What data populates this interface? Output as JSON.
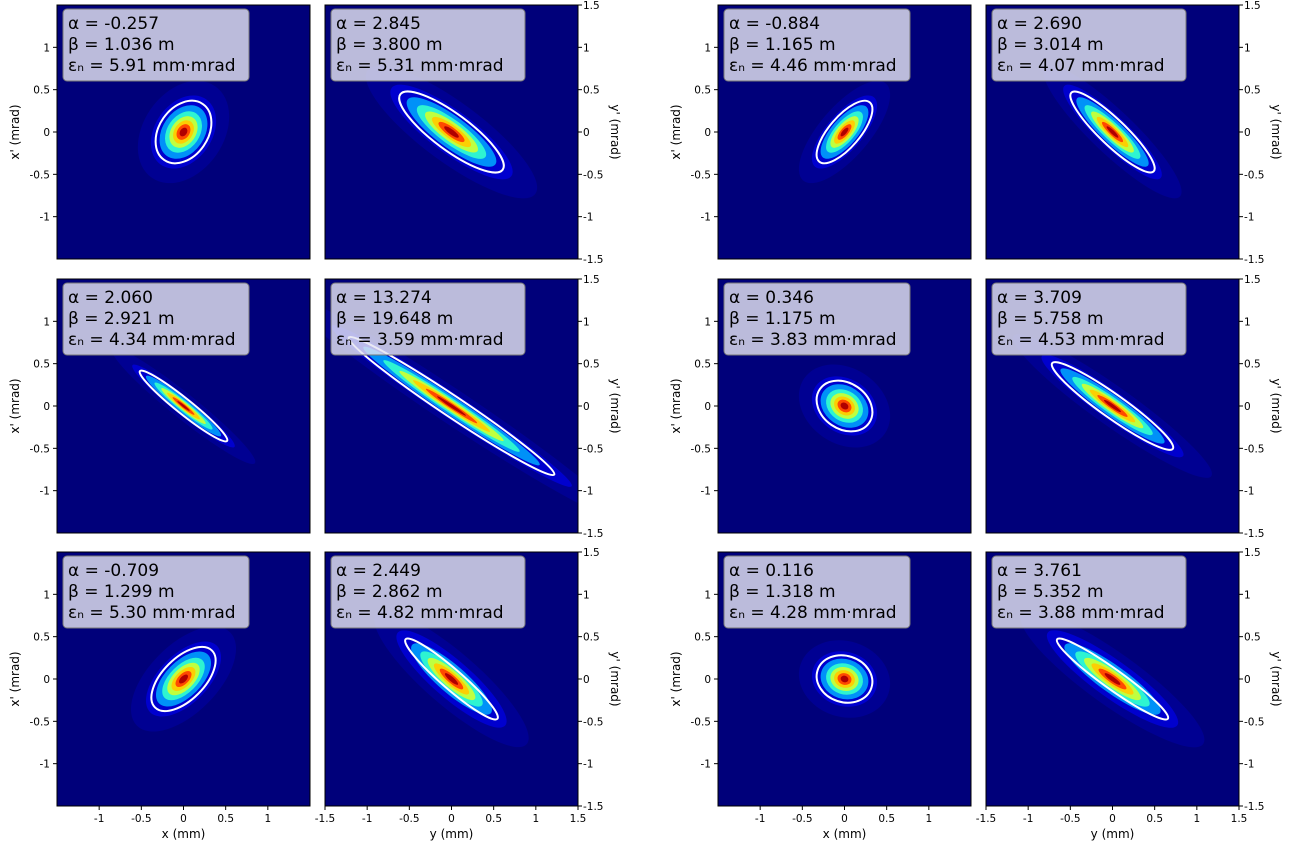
{
  "colors": {
    "background": "#00007a",
    "ellipse": "#ffffff",
    "colormap": [
      "#00007a",
      "#0000ff",
      "#00aaff",
      "#33ffcc",
      "#ccff33",
      "#ffcc00",
      "#ff4400",
      "#b00000"
    ]
  },
  "chart_data": [
    {
      "type": "heatmap",
      "plane": "x",
      "xlabel": "x (mm)",
      "ylabel": "x' (mrad)",
      "xlim": [
        -1.5,
        1.5
      ],
      "ylim": [
        -1.5,
        1.5
      ],
      "colormap": "jet",
      "grid": false,
      "annotation": {
        "alpha": "α = -0.257",
        "beta": "β = 1.036 m",
        "emittance": "εₙ = 5.91 mm·mrad"
      },
      "twiss": {
        "alpha": -0.257,
        "beta": 1.036,
        "emittance": 5.91
      }
    },
    {
      "type": "heatmap",
      "plane": "y",
      "xlabel": "y (mm)",
      "ylabel": "y' (mrad)",
      "xlim": [
        -1.5,
        1.5
      ],
      "ylim": [
        -1.5,
        1.5
      ],
      "colormap": "jet",
      "grid": false,
      "annotation": {
        "alpha": "α = 2.845",
        "beta": "β = 3.800 m",
        "emittance": "εₙ = 5.31 mm·mrad"
      },
      "twiss": {
        "alpha": 2.845,
        "beta": 3.8,
        "emittance": 5.31
      }
    },
    {
      "type": "heatmap",
      "plane": "x",
      "xlabel": "x (mm)",
      "ylabel": "x' (mrad)",
      "xlim": [
        -1.5,
        1.5
      ],
      "ylim": [
        -1.5,
        1.5
      ],
      "colormap": "jet",
      "grid": false,
      "annotation": {
        "alpha": "α = -0.884",
        "beta": "β = 1.165 m",
        "emittance": "εₙ = 4.46 mm·mrad"
      },
      "twiss": {
        "alpha": -0.884,
        "beta": 1.165,
        "emittance": 4.46
      }
    },
    {
      "type": "heatmap",
      "plane": "y",
      "xlabel": "y (mm)",
      "ylabel": "y' (mrad)",
      "xlim": [
        -1.5,
        1.5
      ],
      "ylim": [
        -1.5,
        1.5
      ],
      "colormap": "jet",
      "grid": false,
      "annotation": {
        "alpha": "α = 2.690",
        "beta": "β = 3.014 m",
        "emittance": "εₙ = 4.07 mm·mrad"
      },
      "twiss": {
        "alpha": 2.69,
        "beta": 3.014,
        "emittance": 4.07
      }
    },
    {
      "type": "heatmap",
      "plane": "x",
      "xlabel": "x (mm)",
      "ylabel": "x' (mrad)",
      "xlim": [
        -1.5,
        1.5
      ],
      "ylim": [
        -1.5,
        1.5
      ],
      "colormap": "jet",
      "grid": false,
      "annotation": {
        "alpha": "α = 2.060",
        "beta": "β = 2.921 m",
        "emittance": "εₙ = 4.34 mm·mrad"
      },
      "twiss": {
        "alpha": 2.06,
        "beta": 2.921,
        "emittance": 4.34
      }
    },
    {
      "type": "heatmap",
      "plane": "y",
      "xlabel": "y (mm)",
      "ylabel": "y' (mrad)",
      "xlim": [
        -1.5,
        1.5
      ],
      "ylim": [
        -1.5,
        1.5
      ],
      "colormap": "jet",
      "grid": false,
      "annotation": {
        "alpha": "α = 13.274",
        "beta": "β = 19.648 m",
        "emittance": "εₙ = 3.59 mm·mrad"
      },
      "twiss": {
        "alpha": 13.274,
        "beta": 19.648,
        "emittance": 3.59
      }
    },
    {
      "type": "heatmap",
      "plane": "x",
      "xlabel": "x (mm)",
      "ylabel": "x' (mrad)",
      "xlim": [
        -1.5,
        1.5
      ],
      "ylim": [
        -1.5,
        1.5
      ],
      "colormap": "jet",
      "grid": false,
      "annotation": {
        "alpha": "α = 0.346",
        "beta": "β = 1.175 m",
        "emittance": "εₙ = 3.83 mm·mrad"
      },
      "twiss": {
        "alpha": 0.346,
        "beta": 1.175,
        "emittance": 3.83
      }
    },
    {
      "type": "heatmap",
      "plane": "y",
      "xlabel": "y (mm)",
      "ylabel": "y' (mrad)",
      "xlim": [
        -1.5,
        1.5
      ],
      "ylim": [
        -1.5,
        1.5
      ],
      "colormap": "jet",
      "grid": false,
      "annotation": {
        "alpha": "α = 3.709",
        "beta": "β = 5.758 m",
        "emittance": "εₙ = 4.53 mm·mrad"
      },
      "twiss": {
        "alpha": 3.709,
        "beta": 5.758,
        "emittance": 4.53
      }
    },
    {
      "type": "heatmap",
      "plane": "x",
      "xlabel": "x (mm)",
      "ylabel": "x' (mrad)",
      "xlim": [
        -1.5,
        1.5
      ],
      "ylim": [
        -1.5,
        1.5
      ],
      "colormap": "jet",
      "grid": false,
      "annotation": {
        "alpha": "α = -0.709",
        "beta": "β = 1.299 m",
        "emittance": "εₙ = 5.30 mm·mrad"
      },
      "twiss": {
        "alpha": -0.709,
        "beta": 1.299,
        "emittance": 5.3
      }
    },
    {
      "type": "heatmap",
      "plane": "y",
      "xlabel": "y (mm)",
      "ylabel": "y' (mrad)",
      "xlim": [
        -1.5,
        1.5
      ],
      "ylim": [
        -1.5,
        1.5
      ],
      "colormap": "jet",
      "grid": false,
      "annotation": {
        "alpha": "α = 2.449",
        "beta": "β = 2.862 m",
        "emittance": "εₙ = 4.82 mm·mrad"
      },
      "twiss": {
        "alpha": 2.449,
        "beta": 2.862,
        "emittance": 4.82
      }
    },
    {
      "type": "heatmap",
      "plane": "x",
      "xlabel": "x (mm)",
      "ylabel": "x' (mrad)",
      "xlim": [
        -1.5,
        1.5
      ],
      "ylim": [
        -1.5,
        1.5
      ],
      "colormap": "jet",
      "grid": false,
      "annotation": {
        "alpha": "α = 0.116",
        "beta": "β = 1.318 m",
        "emittance": "εₙ = 4.28 mm·mrad"
      },
      "twiss": {
        "alpha": 0.116,
        "beta": 1.318,
        "emittance": 4.28
      }
    },
    {
      "type": "heatmap",
      "plane": "y",
      "xlabel": "y (mm)",
      "ylabel": "y' (mrad)",
      "xlim": [
        -1.5,
        1.5
      ],
      "ylim": [
        -1.5,
        1.5
      ],
      "colormap": "jet",
      "grid": false,
      "annotation": {
        "alpha": "α = 3.761",
        "beta": "β = 5.352 m",
        "emittance": "εₙ = 3.88 mm·mrad"
      },
      "twiss": {
        "alpha": 3.761,
        "beta": 5.352,
        "emittance": 3.88
      }
    }
  ],
  "ellipses": [
    {
      "center": [
        0,
        0
      ],
      "x_extent": 0.33,
      "y_extent": 0.37,
      "x_at_ymax": 0.1
    },
    {
      "center": [
        0,
        0
      ],
      "x_extent": 0.62,
      "y_extent": 0.48,
      "x_at_ymax": -0.52
    },
    {
      "center": [
        0,
        0
      ],
      "x_extent": 0.33,
      "y_extent": 0.37,
      "x_at_ymax": 0.24
    },
    {
      "center": [
        0,
        0
      ],
      "x_extent": 0.5,
      "y_extent": 0.48,
      "x_at_ymax": -0.45
    },
    {
      "center": [
        0,
        0
      ],
      "x_extent": 0.52,
      "y_extent": 0.42,
      "x_at_ymax": -0.5
    },
    {
      "center": [
        0,
        0
      ],
      "x_extent": 1.22,
      "y_extent": 0.82,
      "x_at_ymax": -1.2
    },
    {
      "center": [
        0,
        0
      ],
      "x_extent": 0.33,
      "y_extent": 0.3,
      "x_at_ymax": -0.08
    },
    {
      "center": [
        0,
        0
      ],
      "x_extent": 0.72,
      "y_extent": 0.52,
      "x_at_ymax": -0.68
    },
    {
      "center": [
        0,
        0
      ],
      "x_extent": 0.38,
      "y_extent": 0.38,
      "x_at_ymax": 0.22
    },
    {
      "center": [
        0,
        0
      ],
      "x_extent": 0.55,
      "y_extent": 0.48,
      "x_at_ymax": -0.52
    },
    {
      "center": [
        0,
        0
      ],
      "x_extent": 0.33,
      "y_extent": 0.28,
      "x_at_ymax": -0.04
    },
    {
      "center": [
        0,
        0
      ],
      "x_extent": 0.66,
      "y_extent": 0.48,
      "x_at_ymax": -0.63
    }
  ],
  "axes": {
    "xticks_x": [
      "-1",
      "-0.5",
      "0",
      "0.5",
      "1"
    ],
    "xticks_y": [
      "-1.5",
      "-1",
      "-0.5",
      "0",
      "0.5",
      "1",
      "1.5"
    ],
    "yticks_left": [
      "1",
      "0.5",
      "0",
      "-0.5",
      "-1"
    ],
    "yticks_right": [
      "1.5",
      "1",
      "0.5",
      "0",
      "-0.5",
      "-1",
      "-1.5"
    ]
  }
}
